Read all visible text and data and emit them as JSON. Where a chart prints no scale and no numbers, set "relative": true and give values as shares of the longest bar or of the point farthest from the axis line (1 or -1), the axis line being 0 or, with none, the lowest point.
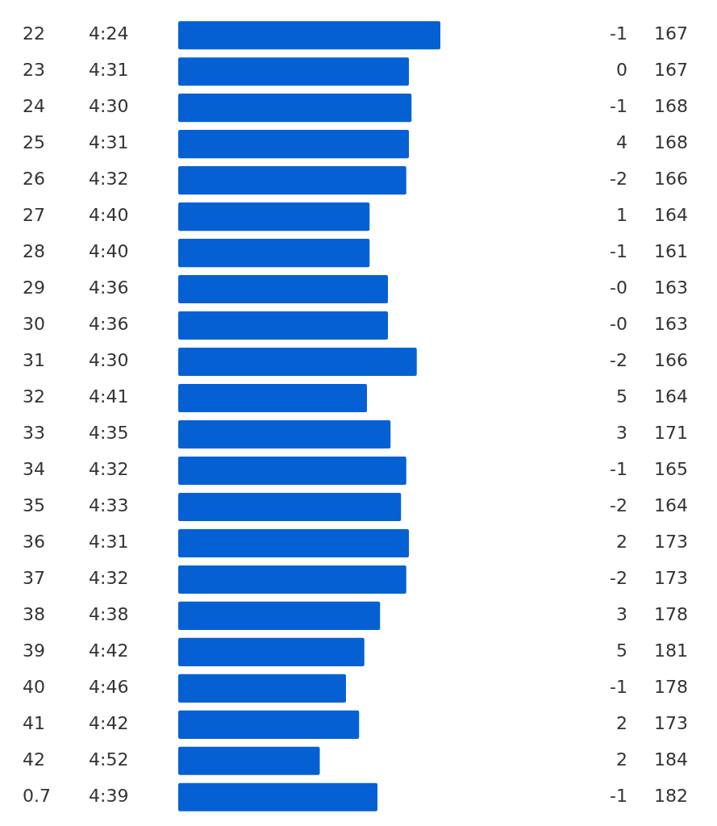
{
  "chart_data": {
    "type": "bar",
    "orientation": "horizontal",
    "relative": true,
    "categories": [
      "22",
      "23",
      "24",
      "25",
      "26",
      "27",
      "28",
      "29",
      "30",
      "31",
      "32",
      "33",
      "34",
      "35",
      "36",
      "37",
      "38",
      "39",
      "40",
      "41",
      "42",
      "0.7"
    ],
    "series": [
      {
        "color": "#0561d3",
        "values": [
          1,
          0.88,
          0.89,
          0.88,
          0.87,
          0.73,
          0.73,
          0.8,
          0.8,
          0.91,
          0.72,
          0.81,
          0.87,
          0.85,
          0.88,
          0.87,
          0.77,
          0.71,
          0.64,
          0.69,
          0.54,
          0.76
        ]
      }
    ],
    "annotations": [
      "4:24",
      "-1",
      "167",
      "4:31",
      "0",
      "167",
      "4:30",
      "-1",
      "168",
      "4:31",
      "4",
      "168",
      "4:32",
      "-2",
      "166",
      "4:40",
      "1",
      "164",
      "4:40",
      "-1",
      "161",
      "4:36",
      "-0",
      "163",
      "4:36",
      "-0",
      "163",
      "4:30",
      "-2",
      "166",
      "4:41",
      "5",
      "164",
      "4:35",
      "3",
      "171",
      "4:32",
      "-1",
      "165",
      "4:33",
      "-2",
      "164",
      "4:31",
      "2",
      "173",
      "4:32",
      "-2",
      "173",
      "4:38",
      "3",
      "178",
      "4:42",
      "5",
      "181",
      "4:46",
      "-1",
      "178",
      "4:42",
      "2",
      "173",
      "4:52",
      "2",
      "184",
      "4:39",
      "-1",
      "182"
    ]
  }
}
